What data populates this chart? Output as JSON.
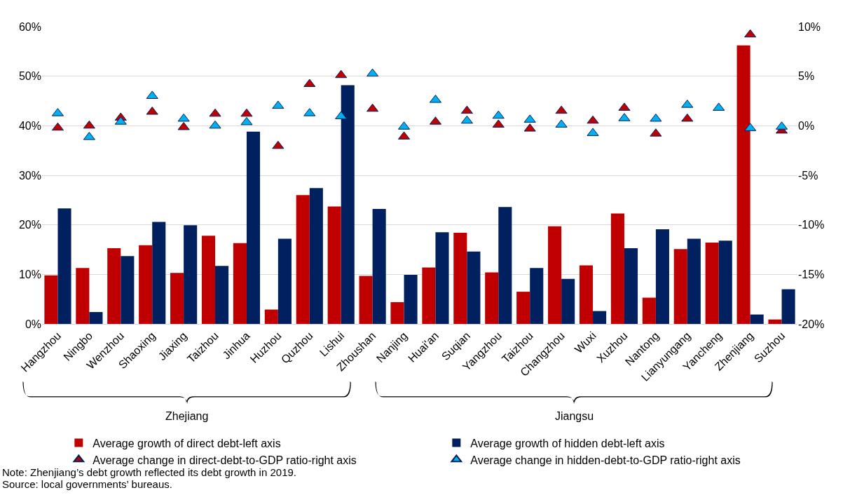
{
  "chart_data": {
    "type": "bar",
    "categories": [
      "Hangzhou",
      "Ningbo",
      "Wenzhou",
      "Shaoxing",
      "Jiaxing",
      "Taizhou",
      "Jinhua",
      "Huzhou",
      "Quzhou",
      "Lishui",
      "Zhoushan",
      "Nanjing",
      "Huai'an",
      "Suqian",
      "Yangzhou",
      "Taizhou",
      "Changzhou",
      "Wuxi",
      "Xuzhou",
      "Nantong",
      "Lianyungang",
      "Yancheng",
      "Zhenjiang",
      "Suzhou"
    ],
    "series": [
      {
        "name": "Average growth of direct debt-left axis",
        "color": "#c00000",
        "values": [
          9.8,
          11.3,
          15.3,
          15.9,
          10.3,
          17.8,
          16.3,
          2.9,
          26.0,
          23.7,
          9.7,
          4.4,
          11.4,
          18.4,
          10.4,
          6.5,
          19.7,
          11.8,
          22.3,
          5.3,
          15.1,
          16.4,
          56.2,
          0.9
        ]
      },
      {
        "name": "Average growth of hidden debt-left axis",
        "color": "#002060",
        "values": [
          23.3,
          2.4,
          13.7,
          20.6,
          19.9,
          11.7,
          38.8,
          17.2,
          27.4,
          48.2,
          23.2,
          9.9,
          18.5,
          14.6,
          23.6,
          11.3,
          9.1,
          2.6,
          15.3,
          19.1,
          17.2,
          16.8,
          1.9,
          7.0
        ]
      },
      {
        "name": "Average change in direct-debt-to-GDP ratio-right axis",
        "type": "scatter",
        "marker": "triangle",
        "axis": "y2",
        "color": "#c00000",
        "values": [
          -0.2,
          0.0,
          0.8,
          1.4,
          -0.15,
          1.2,
          1.2,
          -2.05,
          4.2,
          5.1,
          1.7,
          -1.1,
          0.4,
          1.5,
          0.1,
          -0.3,
          1.5,
          0.5,
          1.8,
          -0.8,
          0.7,
          null,
          9.2,
          -0.5
        ]
      },
      {
        "name": "Average change in hidden-debt-to-GDP ratio-right axis",
        "type": "scatter",
        "marker": "triangle",
        "axis": "y2",
        "color": "#00b0f0",
        "values": [
          1.25,
          -1.15,
          0.4,
          3.0,
          0.7,
          0.0,
          0.35,
          2.0,
          1.25,
          0.95,
          5.25,
          -0.1,
          2.6,
          0.5,
          1.0,
          0.6,
          0.1,
          -0.75,
          0.75,
          0.7,
          2.1,
          1.8,
          -0.25,
          -0.1
        ]
      }
    ],
    "ylim": [
      0,
      60
    ],
    "yticks": [
      {
        "value": 0,
        "label": "0%"
      },
      {
        "value": 10,
        "label": "10%"
      },
      {
        "value": 20,
        "label": "20%"
      },
      {
        "value": 30,
        "label": "30%"
      },
      {
        "value": 40,
        "label": "40%"
      },
      {
        "value": 50,
        "label": "50%"
      },
      {
        "value": 60,
        "label": "60%"
      }
    ],
    "y2lim": [
      -20,
      10
    ],
    "y2ticks": [
      {
        "value": -20,
        "label": "-20%"
      },
      {
        "value": -15,
        "label": "-15%"
      },
      {
        "value": -10,
        "label": "-10%"
      },
      {
        "value": -5,
        "label": "-5%"
      },
      {
        "value": 0,
        "label": "0%"
      },
      {
        "value": 5,
        "label": "5%"
      },
      {
        "value": 10,
        "label": "10%"
      }
    ],
    "grid": "y",
    "legend": "bottom",
    "annotations": [
      "Zhejiang",
      "Jiangsu",
      "Note: Zhenjiang’s debt growth reflected its debt growth in 2019.",
      "Source: local governments’ bureaus."
    ]
  }
}
